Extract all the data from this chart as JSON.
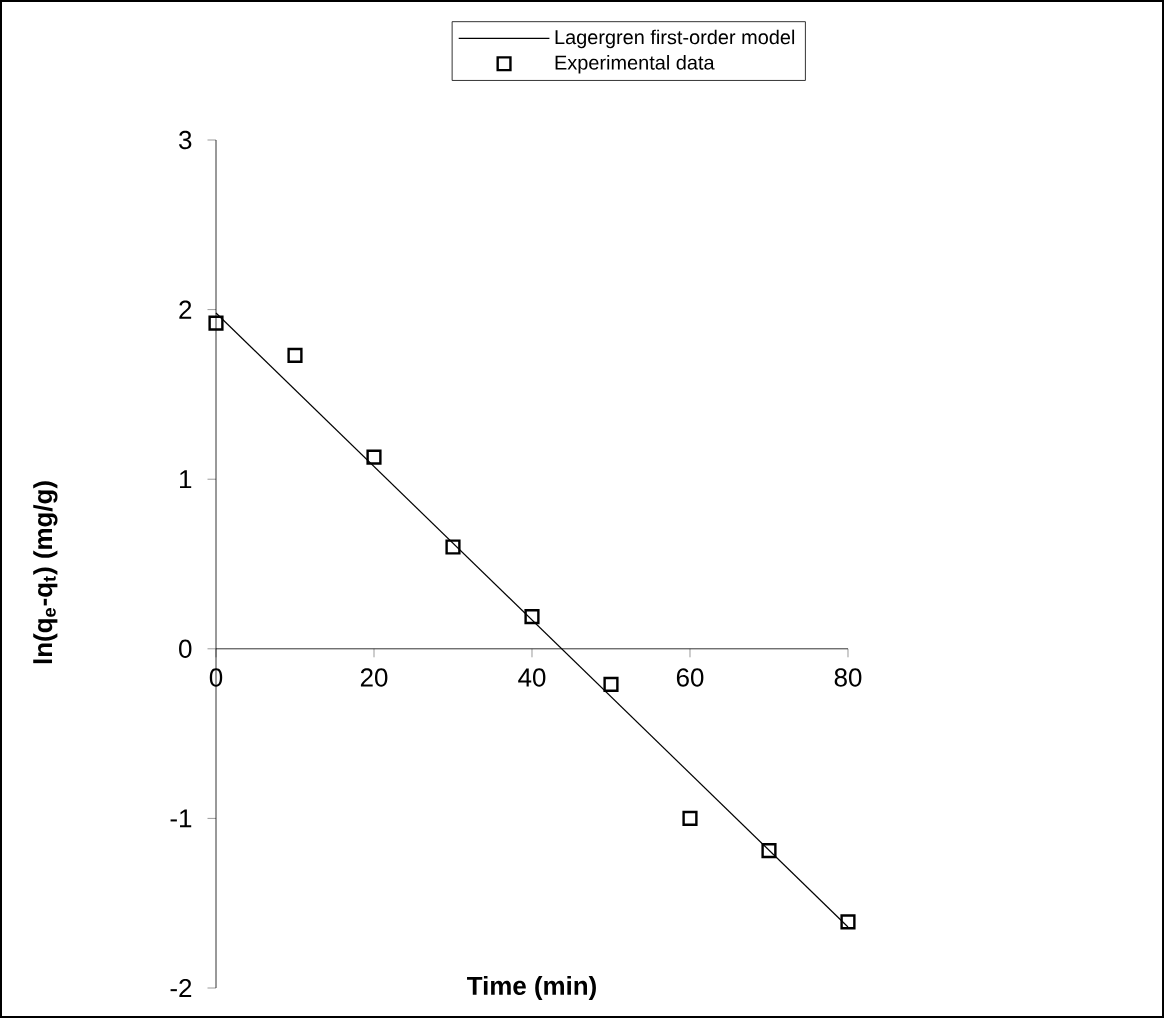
{
  "chart_data": {
    "type": "scatter",
    "xlabel": "Time (min)",
    "ylabel": "ln(q$_{e}$-q$_{t}$) (mg/g)",
    "xlim": [
      0,
      80
    ],
    "ylim": [
      -2,
      3
    ],
    "xticks": [
      0,
      20,
      40,
      60,
      80
    ],
    "yticks": [
      -2,
      -1,
      0,
      1,
      2,
      3
    ],
    "grid": false,
    "legend": "top right",
    "series": [
      {
        "name": "Lagergren first-order model",
        "type": "line",
        "marker": "none",
        "line_style": "solid",
        "color": "#000000",
        "x": [
          0,
          80
        ],
        "values": [
          1.98,
          -1.64
        ]
      },
      {
        "name": "Experimental data",
        "marker": "square",
        "color": "#000000",
        "x": [
          0,
          10,
          20,
          30,
          40,
          50,
          60,
          70,
          80
        ],
        "values": [
          1.92,
          1.73,
          1.13,
          0.6,
          0.19,
          -0.21,
          -1.0,
          -1.19,
          -1.61
        ]
      }
    ]
  }
}
